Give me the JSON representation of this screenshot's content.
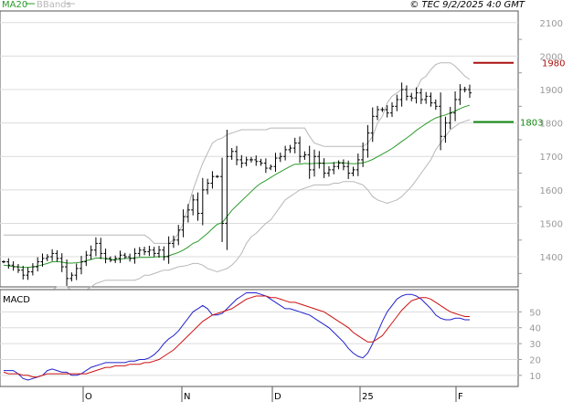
{
  "legend": {
    "ma_label": "MA20",
    "bb_label": "BBands",
    "colors": {
      "ma": "#2a9a2a",
      "bb": "#b8b8b8",
      "bars": "#000000"
    }
  },
  "credit": "© TEC 9/2/2025 4:0 GMT",
  "macd_label": "MACD",
  "levels": {
    "resistance": {
      "value": 1980,
      "label": "1980",
      "color": "#aa1111"
    },
    "support": {
      "value": 1803,
      "label": "1803",
      "color": "#118811"
    }
  },
  "chart_data": [
    {
      "type": "ohlc",
      "title": "",
      "xlabel": "",
      "ylabel": "",
      "x_ticks": [
        "O",
        "N",
        "D",
        "25",
        "F"
      ],
      "y_ticks": [
        "2100",
        "2000",
        "1900",
        "1800",
        "1700",
        "1600",
        "1500",
        "1400"
      ],
      "ylim": [
        1310,
        2135
      ],
      "grid": true,
      "overlays": [
        "MA20",
        "BBands"
      ],
      "closes": [
        1385,
        1375,
        1370,
        1360,
        1345,
        1355,
        1370,
        1385,
        1395,
        1400,
        1410,
        1395,
        1370,
        1335,
        1345,
        1365,
        1385,
        1405,
        1420,
        1440,
        1410,
        1395,
        1390,
        1395,
        1405,
        1400,
        1395,
        1410,
        1420,
        1415,
        1420,
        1410,
        1420,
        1400,
        1440,
        1450,
        1480,
        1520,
        1540,
        1570,
        1530,
        1600,
        1620,
        1640,
        1640,
        1500,
        1700,
        1715,
        1690,
        1680,
        1690,
        1690,
        1685,
        1680,
        1665,
        1670,
        1695,
        1700,
        1720,
        1725,
        1740,
        1700,
        1705,
        1660,
        1700,
        1680,
        1650,
        1660,
        1670,
        1680,
        1670,
        1650,
        1660,
        1690,
        1720,
        1770,
        1820,
        1840,
        1840,
        1830,
        1850,
        1870,
        1900,
        1880,
        1875,
        1890,
        1870,
        1880,
        1860,
        1850,
        1760,
        1800,
        1830,
        1870,
        1900,
        1900,
        1890
      ],
      "ma20": [
        1375,
        1373,
        1371,
        1370,
        1368,
        1368,
        1370,
        1372,
        1376,
        1380,
        1385,
        1386,
        1384,
        1381,
        1381,
        1382,
        1384,
        1388,
        1392,
        1396,
        1396,
        1394,
        1392,
        1391,
        1393,
        1395,
        1395,
        1397,
        1398,
        1398,
        1398,
        1399,
        1401,
        1400,
        1403,
        1408,
        1413,
        1420,
        1429,
        1440,
        1446,
        1458,
        1470,
        1484,
        1497,
        1502,
        1520,
        1539,
        1553,
        1567,
        1581,
        1595,
        1609,
        1620,
        1628,
        1637,
        1646,
        1654,
        1662,
        1670,
        1677,
        1677,
        1679,
        1678,
        1679,
        1680,
        1679,
        1680,
        1681,
        1682,
        1681,
        1679,
        1678,
        1679,
        1681,
        1685,
        1691,
        1699,
        1707,
        1715,
        1724,
        1734,
        1745,
        1755,
        1766,
        1778,
        1788,
        1798,
        1807,
        1815,
        1820,
        1824,
        1830,
        1836,
        1843,
        1849,
        1853
      ],
      "bb_upper": [
        1465,
        1465,
        1465,
        1465,
        1465,
        1465,
        1465,
        1465,
        1465,
        1465,
        1465,
        1465,
        1465,
        1465,
        1465,
        1465,
        1465,
        1465,
        1465,
        1465,
        1465,
        1465,
        1465,
        1465,
        1465,
        1465,
        1465,
        1465,
        1465,
        1465,
        1455,
        1440,
        1440,
        1440,
        1440,
        1450,
        1470,
        1500,
        1550,
        1600,
        1640,
        1680,
        1710,
        1740,
        1750,
        1755,
        1765,
        1770,
        1775,
        1780,
        1780,
        1780,
        1780,
        1780,
        1780,
        1785,
        1785,
        1785,
        1785,
        1785,
        1785,
        1785,
        1785,
        1760,
        1740,
        1735,
        1730,
        1730,
        1730,
        1730,
        1730,
        1730,
        1730,
        1730,
        1730,
        1740,
        1760,
        1800,
        1820,
        1860,
        1880,
        1890,
        1900,
        1900,
        1900,
        1900,
        1930,
        1940,
        1960,
        1975,
        1980,
        1980,
        1980,
        1970,
        1955,
        1940,
        1930
      ],
      "bb_lower": [
        1300,
        1295,
        1295,
        1295,
        1295,
        1295,
        1295,
        1295,
        1295,
        1295,
        1300,
        1310,
        1310,
        1310,
        1300,
        1300,
        1300,
        1300,
        1310,
        1320,
        1325,
        1330,
        1330,
        1330,
        1330,
        1330,
        1330,
        1330,
        1335,
        1345,
        1345,
        1350,
        1355,
        1360,
        1360,
        1365,
        1370,
        1372,
        1375,
        1380,
        1380,
        1375,
        1365,
        1360,
        1355,
        1360,
        1365,
        1375,
        1390,
        1410,
        1440,
        1460,
        1470,
        1485,
        1500,
        1510,
        1530,
        1550,
        1570,
        1580,
        1590,
        1600,
        1605,
        1610,
        1615,
        1615,
        1615,
        1615,
        1620,
        1620,
        1625,
        1625,
        1625,
        1620,
        1615,
        1600,
        1580,
        1570,
        1565,
        1560,
        1565,
        1570,
        1580,
        1595,
        1610,
        1630,
        1650,
        1670,
        1690,
        1720,
        1740,
        1760,
        1780,
        1790,
        1800,
        1805,
        1810
      ]
    },
    {
      "type": "line",
      "title": "MACD",
      "xlabel": "",
      "ylabel": "",
      "y_ticks": [
        "50",
        "40",
        "30",
        "20",
        "10"
      ],
      "ylim": [
        3,
        64
      ],
      "grid": true,
      "series": [
        {
          "name": "",
          "color": "#2222cc",
          "values": [
            13,
            13,
            13,
            11,
            8,
            7,
            8,
            9,
            10,
            13,
            14,
            13,
            12,
            12,
            10,
            10,
            11,
            13,
            15,
            16,
            17,
            18,
            18,
            18,
            18,
            18,
            19,
            19,
            20,
            20,
            21,
            23,
            26,
            30,
            33,
            35,
            38,
            42,
            46,
            50,
            52,
            54,
            52,
            48,
            48,
            49,
            52,
            55,
            58,
            60,
            62,
            62,
            62,
            61,
            60,
            58,
            56,
            54,
            52,
            52,
            51,
            50,
            49,
            48,
            46,
            44,
            42,
            40,
            37,
            34,
            31,
            27,
            24,
            22,
            21,
            24,
            30,
            37,
            44,
            50,
            54,
            58,
            60,
            61,
            61,
            60,
            58,
            55,
            52,
            48,
            46,
            45,
            45,
            46,
            46,
            45,
            45
          ]
        },
        {
          "name": "",
          "color": "#cc1111",
          "values": [
            12,
            11,
            11,
            11,
            10,
            10,
            9,
            9,
            10,
            11,
            11,
            11,
            11,
            11,
            11,
            11,
            11,
            11,
            12,
            13,
            14,
            15,
            15,
            16,
            16,
            16,
            17,
            17,
            17,
            18,
            18,
            19,
            20,
            22,
            24,
            26,
            29,
            32,
            35,
            38,
            41,
            44,
            46,
            48,
            49,
            50,
            51,
            52,
            54,
            56,
            58,
            59,
            60,
            60,
            60,
            59,
            59,
            58,
            57,
            56,
            56,
            55,
            54,
            53,
            52,
            51,
            50,
            48,
            46,
            44,
            42,
            40,
            37,
            35,
            33,
            31,
            31,
            33,
            35,
            39,
            43,
            47,
            51,
            54,
            57,
            58,
            59,
            59,
            58,
            56,
            54,
            52,
            50,
            49,
            48,
            47,
            47
          ]
        }
      ]
    }
  ]
}
